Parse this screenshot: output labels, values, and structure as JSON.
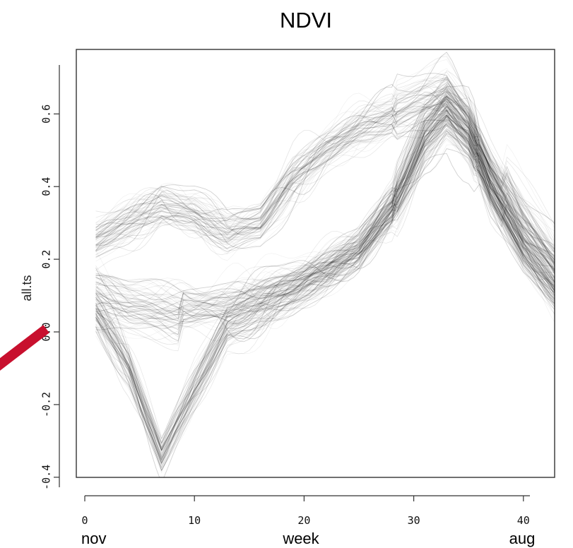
{
  "chart_data": {
    "type": "line",
    "title": "NDVI",
    "xlabel": "week",
    "ylabel": "all.ts",
    "xlim": [
      0,
      44
    ],
    "ylim": [
      -0.42,
      0.75
    ],
    "x_ticks": [
      0,
      10,
      20,
      30,
      40
    ],
    "y_ticks": [
      -0.4,
      -0.2,
      0.0,
      0.2,
      0.4,
      0.6
    ],
    "x_tick_labels": [
      "0",
      "10",
      "20",
      "30",
      "40"
    ],
    "y_tick_labels": [
      "-0.4",
      "-0.2",
      "0.0",
      "0.2",
      "0.4",
      "0.6"
    ],
    "bottom_labels": {
      "left": "nov",
      "center": "week",
      "right": "aug"
    },
    "line_color": "#000000",
    "grid": false,
    "legend": "none",
    "series_summary": [
      {
        "x": [
          1,
          4,
          7,
          10,
          13,
          16,
          19,
          22,
          25,
          28,
          31,
          33,
          35,
          37,
          40,
          43
        ],
        "values": [
          0.12,
          0.09,
          0.08,
          0.07,
          0.08,
          0.1,
          0.13,
          0.17,
          0.23,
          0.35,
          0.56,
          0.63,
          0.55,
          0.38,
          0.22,
          0.12
        ]
      },
      {
        "x": [
          1,
          4,
          7,
          10,
          13,
          16,
          19,
          22,
          25,
          28,
          31,
          33,
          35,
          37,
          40,
          43
        ],
        "values": [
          0.25,
          0.3,
          0.35,
          0.33,
          0.28,
          0.3,
          0.42,
          0.5,
          0.56,
          0.6,
          0.64,
          0.66,
          0.58,
          0.45,
          0.3,
          0.18
        ]
      },
      {
        "x": [
          1,
          4,
          7,
          10,
          13,
          16,
          19,
          22,
          25,
          28,
          31,
          33,
          35,
          37,
          40,
          43
        ],
        "values": [
          0.05,
          -0.1,
          -0.34,
          -0.15,
          0.02,
          0.06,
          0.1,
          0.16,
          0.22,
          0.34,
          0.53,
          0.6,
          0.54,
          0.4,
          0.22,
          0.1
        ]
      }
    ]
  },
  "annotation": {
    "arrow_color": "#c8102e"
  }
}
